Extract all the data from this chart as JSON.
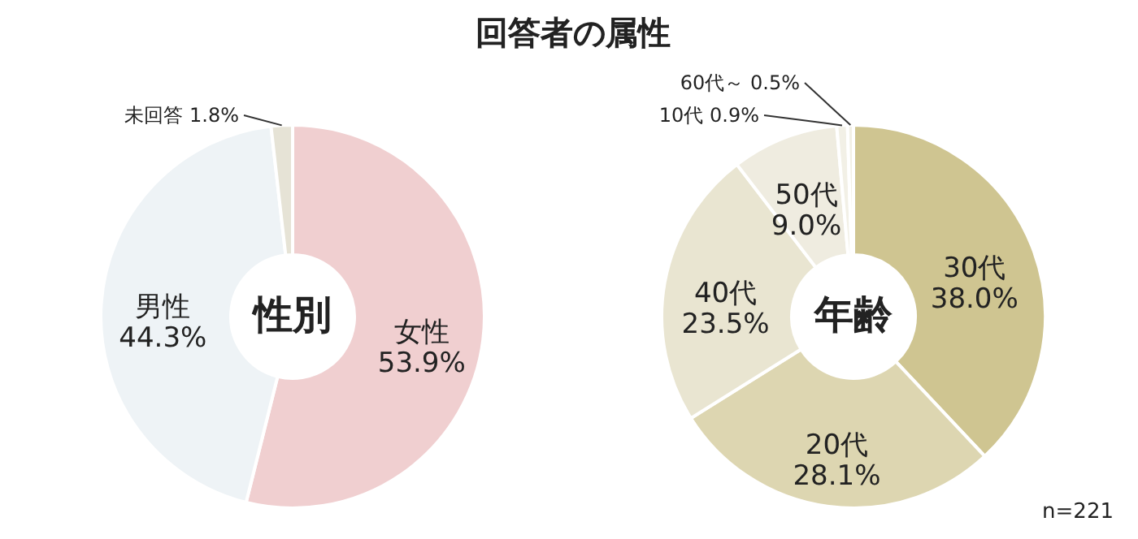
{
  "chart_data": [
    {
      "type": "donut",
      "title": "性別",
      "annotations": [
        "回答者の属性"
      ],
      "categories": [
        "女性",
        "男性",
        "未回答"
      ],
      "values": [
        53.9,
        44.3,
        1.8
      ],
      "value_labels": [
        "53.9%",
        "44.3%",
        "1.8%"
      ],
      "colors": [
        "#f0cfd0",
        "#eef3f6",
        "#e6e3d6"
      ]
    },
    {
      "type": "donut",
      "title": "年齢",
      "annotations": [
        "n=221"
      ],
      "categories": [
        "30代",
        "20代",
        "40代",
        "50代",
        "10代",
        "60代～"
      ],
      "values": [
        38.0,
        28.1,
        23.5,
        9.0,
        0.9,
        0.5
      ],
      "value_labels": [
        "38.0%",
        "28.1%",
        "23.5%",
        "9.0%",
        "0.9%",
        "0.5%"
      ],
      "colors": [
        "#cfc591",
        "#ddd6b1",
        "#e9e5d1",
        "#efece0",
        "#f2f0e6",
        "#f2f0e6"
      ]
    }
  ]
}
